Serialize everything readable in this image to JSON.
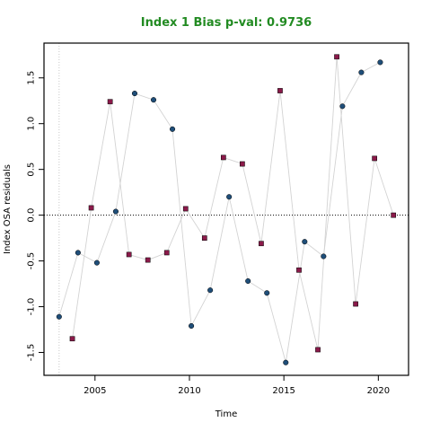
{
  "chart_data": {
    "type": "scatter",
    "title": "Index 1 Bias p-val: 0.9736",
    "title_color": "#228B22",
    "xlabel": "Time",
    "ylabel": "Index OSA residuals",
    "xlim": [
      2002.3,
      2021.6
    ],
    "ylim": [
      -1.75,
      1.88
    ],
    "x_ticks": [
      2005,
      2010,
      2015,
      2020
    ],
    "y_ticks": [
      -1.5,
      -1.0,
      -0.5,
      0.0,
      0.5,
      1.0,
      1.5
    ],
    "x_tick_labels": [
      "2005",
      "2010",
      "2015",
      "2020"
    ],
    "y_tick_labels": [
      "-1.5",
      "-1.0",
      "-0.5",
      "0.0",
      "0.5",
      "1.0",
      "1.5"
    ],
    "reference_line": {
      "y": 0,
      "style": "dotted",
      "color": "#000000"
    },
    "vertical_reference": {
      "x": 2003.1,
      "style": "dotted",
      "color": "#c8c8c8"
    },
    "connector_color": "#d3d3d3",
    "series": [
      {
        "marker": "circle",
        "color": "#1f4e79",
        "points": [
          [
            2003.1,
            -1.11
          ],
          [
            2004.1,
            -0.41
          ],
          [
            2005.1,
            -0.52
          ],
          [
            2006.1,
            0.04
          ],
          [
            2007.1,
            1.33
          ],
          [
            2008.1,
            1.26
          ],
          [
            2009.1,
            0.94
          ],
          [
            2010.1,
            -1.21
          ],
          [
            2011.1,
            -0.82
          ],
          [
            2012.1,
            0.2
          ],
          [
            2013.1,
            -0.72
          ],
          [
            2014.1,
            -0.85
          ],
          [
            2015.1,
            -1.61
          ],
          [
            2016.1,
            -0.29
          ],
          [
            2017.1,
            -0.45
          ],
          [
            2018.1,
            1.19
          ],
          [
            2019.1,
            1.56
          ],
          [
            2020.1,
            1.67
          ]
        ]
      },
      {
        "marker": "square",
        "color": "#8b1a4a",
        "points": [
          [
            2003.8,
            -1.35
          ],
          [
            2004.8,
            0.08
          ],
          [
            2005.8,
            1.24
          ],
          [
            2006.8,
            -0.43
          ],
          [
            2007.8,
            -0.49
          ],
          [
            2008.8,
            -0.41
          ],
          [
            2009.8,
            0.07
          ],
          [
            2010.8,
            -0.25
          ],
          [
            2011.8,
            0.63
          ],
          [
            2012.8,
            0.56
          ],
          [
            2013.8,
            -0.31
          ],
          [
            2014.8,
            1.36
          ],
          [
            2015.8,
            -0.6
          ],
          [
            2016.8,
            -1.47
          ],
          [
            2017.8,
            1.73
          ],
          [
            2018.8,
            -0.97
          ],
          [
            2019.8,
            0.62
          ],
          [
            2020.8,
            0.0
          ]
        ]
      }
    ]
  }
}
